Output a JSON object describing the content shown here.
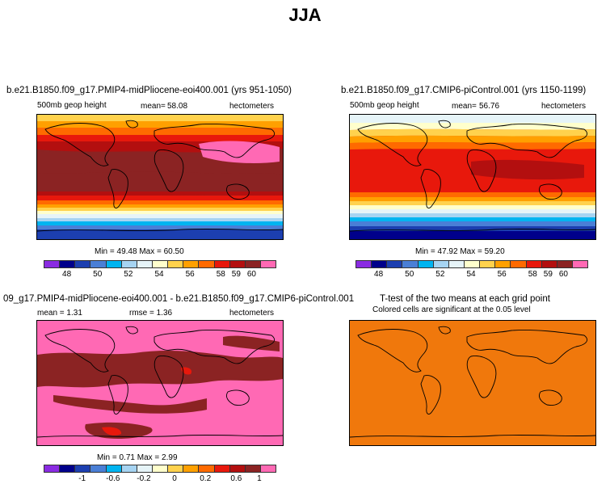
{
  "title": "JJA",
  "panels": [
    {
      "title": "b.e21.B1850.f09_g17.PMIP4-midPliocene-eoi400.001 (yrs 951-1050)",
      "variable": "500mb geop height",
      "mean_label": "mean=",
      "mean_value": "58.08",
      "units": "hectometers",
      "minmax_text": "Min =   49.48  Max =   60.50"
    },
    {
      "title": "b.e21.B1850.f09_g17.CMIP6-piControl.001 (yrs 1150-1199)",
      "variable": "500mb geop height",
      "mean_label": "mean=",
      "mean_value": "56.76",
      "units": "hectometers",
      "minmax_text": "Min =   47.92  Max =   59.20"
    },
    {
      "title": "09_g17.PMIP4-midPliocene-eoi400.001 - b.e21.B1850.f09_g17.CMIP6-piControl.001",
      "mean_text": "mean =    1.31",
      "rmse_text": "rmse =    1.36",
      "units": "hectometers",
      "minmax_text": "Min =   0.71  Max =   2.99"
    },
    {
      "title": "T-test of the two means at each grid point",
      "subtitle": "Colored cells are significant at the 0.05 level"
    }
  ],
  "colorbar_main": {
    "colors": [
      "#8a2be2",
      "#00008b",
      "#1c3fb0",
      "#4a7fd6",
      "#00b4f0",
      "#a6d4f2",
      "#e6f4f8",
      "#ffffcc",
      "#ffd24d",
      "#ffa000",
      "#ff6a00",
      "#e8180c",
      "#b30f0f",
      "#8b2323",
      "#ff69b4"
    ],
    "tick_labels": [
      "48",
      "50",
      "52",
      "54",
      "56",
      "58",
      "59",
      "60"
    ]
  },
  "colorbar_diff": {
    "colors": [
      "#8a2be2",
      "#00008b",
      "#1c3fb0",
      "#4a7fd6",
      "#00b4f0",
      "#a6d4f2",
      "#e6f4f8",
      "#ffffcc",
      "#ffd24d",
      "#ffa000",
      "#ff6a00",
      "#e8180c",
      "#b30f0f",
      "#8b2323",
      "#ff69b4"
    ],
    "tick_labels": [
      "-1",
      "-0.6",
      "-0.2",
      "0",
      "0.2",
      "0.6",
      "1"
    ]
  },
  "ttest_fill_color": "#f0780c"
}
